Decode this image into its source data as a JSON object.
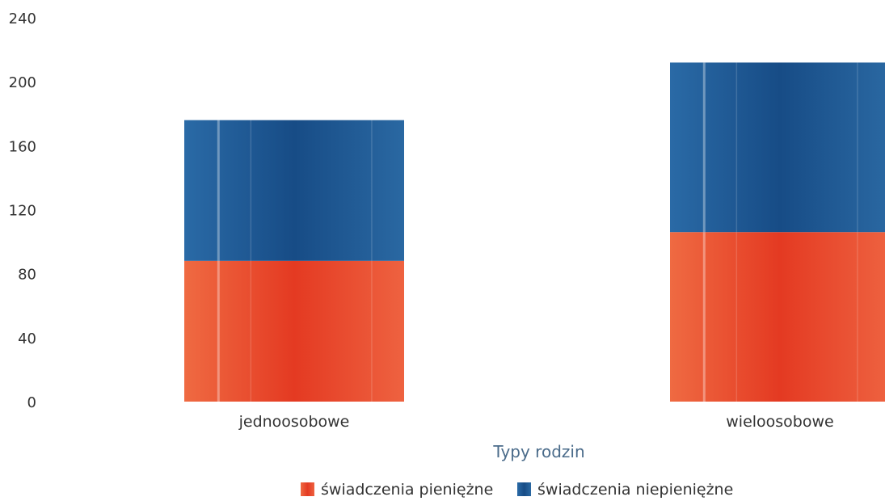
{
  "chart_data": {
    "type": "bar",
    "stacked": true,
    "categories": [
      "jednoosobowe",
      "wieloosobowe"
    ],
    "series": [
      {
        "name": "świadczenia pieniężne",
        "values": [
          88,
          106
        ],
        "color": "#e8452c"
      },
      {
        "name": "świadczenia niepieniężne",
        "values": [
          88,
          106
        ],
        "color": "#1f5b95"
      }
    ],
    "xlabel": "Typy rodzin",
    "ylabel": "",
    "ylim": [
      0,
      240
    ],
    "yticks": [
      0,
      40,
      80,
      120,
      160,
      200,
      240
    ],
    "grid": false,
    "legend_position": "bottom-center"
  }
}
